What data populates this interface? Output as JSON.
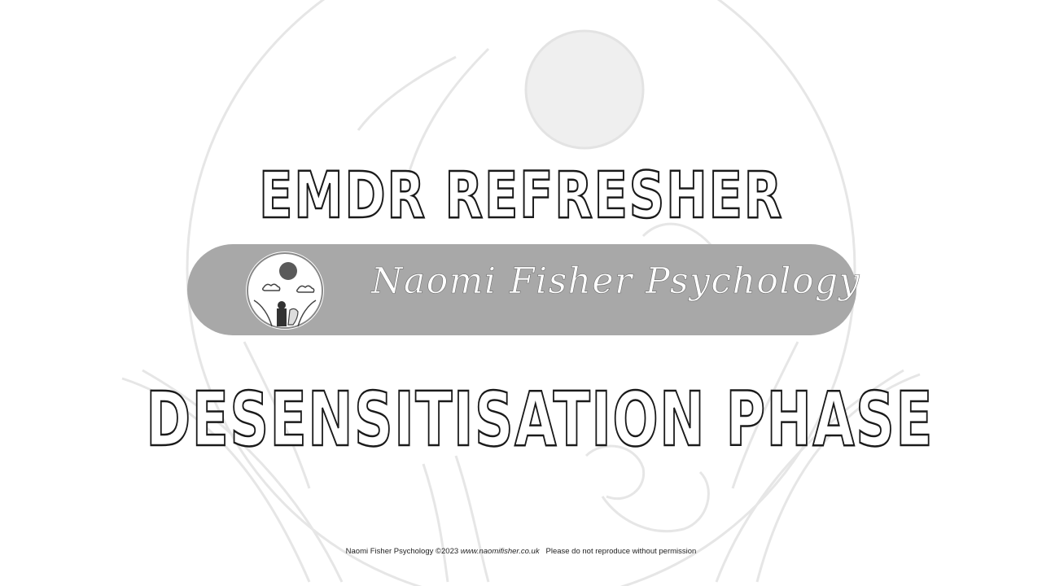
{
  "slide": {
    "title_top": "EMDR REFRESHER",
    "banner_text": "Naomi Fisher Psychology",
    "title_bottom": "DESENSITISATION PHASE"
  },
  "footer": {
    "copyright": "Naomi Fisher Psychology ©2023",
    "url": "www.naomifisher.co.uk",
    "notice": "Please do not reproduce without permission"
  },
  "colors": {
    "banner": "#a8a8a8",
    "title_outline": "#1a1a1a",
    "background_art": "#e6e6e6"
  },
  "icons": {
    "logo": "naomi-fisher-logo-icon",
    "background": "sun-leaves-illustration"
  }
}
